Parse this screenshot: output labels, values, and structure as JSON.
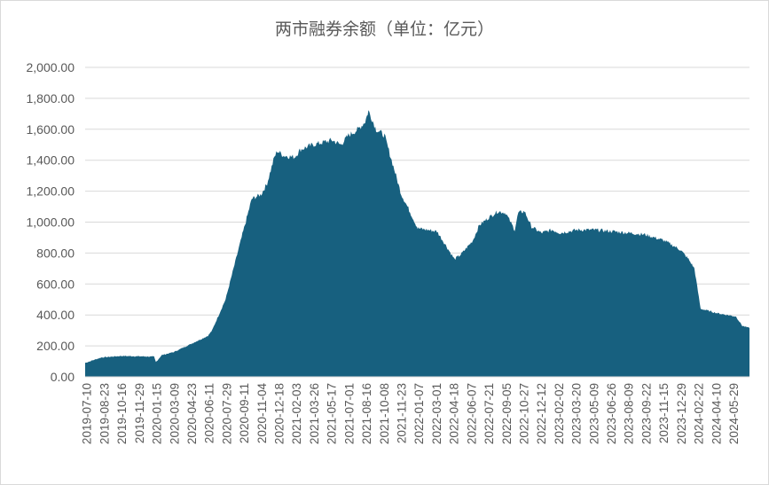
{
  "chart_data": {
    "type": "area",
    "title": "两市融券余额（单位：亿元）",
    "xlabel": "",
    "ylabel": "",
    "ylim": [
      0,
      2000
    ],
    "yticks": [
      "2,000.00",
      "1,800.00",
      "1,600.00",
      "1,400.00",
      "1,200.00",
      "1,000.00",
      "800.00",
      "600.00",
      "400.00",
      "200.00",
      "0.00"
    ],
    "ytick_values": [
      2000,
      1800,
      1600,
      1400,
      1200,
      1000,
      800,
      600,
      400,
      200,
      0
    ],
    "xticks": [
      "2019-07-10",
      "2019-08-23",
      "2019-10-16",
      "2019-11-29",
      "2020-01-15",
      "2020-03-09",
      "2020-04-23",
      "2020-06-11",
      "2020-07-29",
      "2020-09-11",
      "2020-11-04",
      "2020-12-18",
      "2021-02-03",
      "2021-03-26",
      "2021-05-17",
      "2021-07-01",
      "2021-08-16",
      "2021-10-08",
      "2021-11-23",
      "2022-01-07",
      "2022-03-01",
      "2022-04-18",
      "2022-06-07",
      "2022-07-21",
      "2022-09-05",
      "2022-10-27",
      "2022-12-12",
      "2023-02-02",
      "2023-03-20",
      "2023-05-09",
      "2023-06-26",
      "2023-08-09",
      "2023-09-22",
      "2023-11-15",
      "2023-12-29",
      "2024-02-22",
      "2024-04-10",
      "2024-05-29"
    ],
    "grid": true,
    "color": "#17607f",
    "x": [
      "2019-07-10",
      "2019-08-23",
      "2019-10-16",
      "2019-11-29",
      "2020-01-15",
      "2020-01-20",
      "2020-02-05",
      "2020-03-09",
      "2020-04-23",
      "2020-06-11",
      "2020-06-22",
      "2020-07-29",
      "2020-08-20",
      "2020-09-11",
      "2020-10-09",
      "2020-11-04",
      "2020-11-20",
      "2020-12-10",
      "2020-12-18",
      "2021-01-05",
      "2021-02-03",
      "2021-02-20",
      "2021-03-26",
      "2021-05-17",
      "2021-06-10",
      "2021-07-01",
      "2021-07-28",
      "2021-08-16",
      "2021-08-25",
      "2021-09-15",
      "2021-10-08",
      "2021-10-25",
      "2021-11-23",
      "2021-12-10",
      "2022-01-07",
      "2022-03-01",
      "2022-04-18",
      "2022-05-05",
      "2022-06-07",
      "2022-06-25",
      "2022-07-21",
      "2022-08-15",
      "2022-09-05",
      "2022-09-30",
      "2022-10-10",
      "2022-10-27",
      "2022-11-15",
      "2022-12-12",
      "2023-01-10",
      "2023-02-02",
      "2023-03-20",
      "2023-05-09",
      "2023-06-26",
      "2023-08-09",
      "2023-09-22",
      "2023-11-15",
      "2023-12-29",
      "2024-01-20",
      "2024-02-05",
      "2024-02-22",
      "2024-04-10",
      "2024-05-29",
      "2024-06-15",
      "2024-07-05"
    ],
    "values": [
      90,
      125,
      135,
      133,
      130,
      95,
      140,
      160,
      210,
      265,
      300,
      500,
      700,
      900,
      1150,
      1180,
      1250,
      1420,
      1460,
      1430,
      1420,
      1470,
      1500,
      1530,
      1500,
      1560,
      1600,
      1650,
      1720,
      1600,
      1560,
      1420,
      1180,
      1100,
      960,
      940,
      760,
      790,
      880,
      980,
      1030,
      1070,
      1060,
      950,
      1060,
      1070,
      970,
      930,
      950,
      930,
      950,
      950,
      940,
      930,
      920,
      880,
      820,
      760,
      700,
      440,
      410,
      390,
      330,
      315
    ]
  }
}
